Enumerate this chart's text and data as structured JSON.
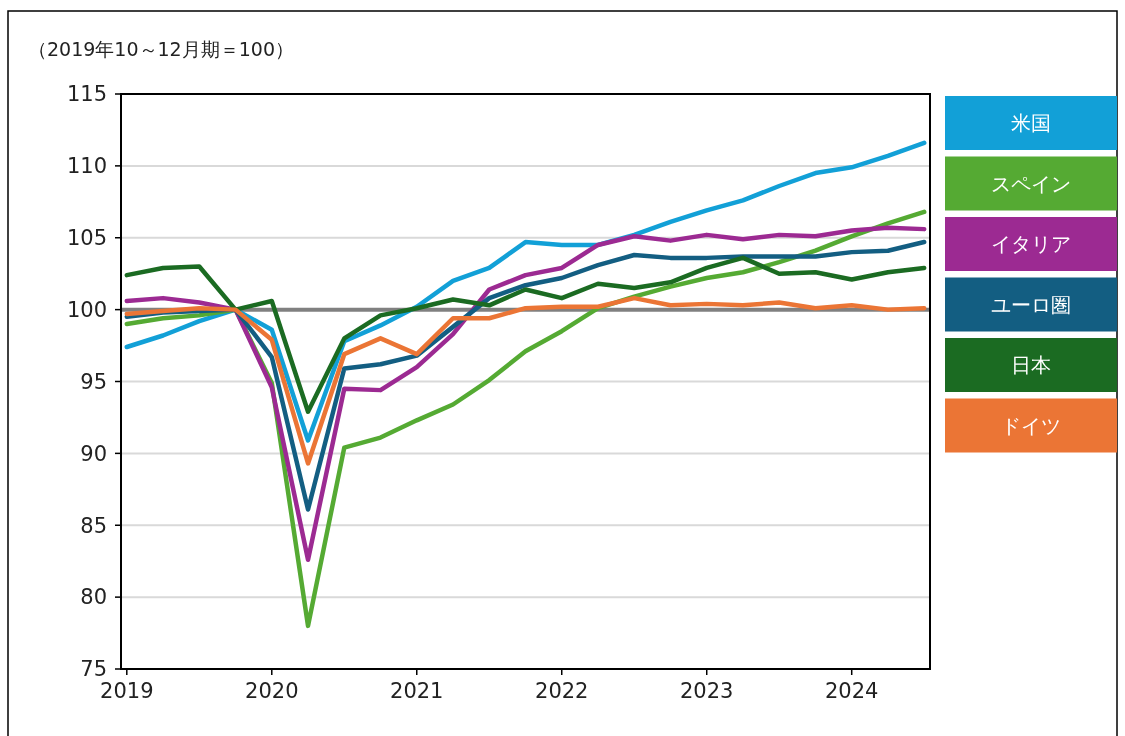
{
  "chart_data": {
    "type": "line",
    "ylabel": "（2019年10～12月期＝100）",
    "x": [
      2019,
      2019.25,
      2019.5,
      2019.75,
      2020,
      2020.25,
      2020.5,
      2020.75,
      2021,
      2021.25,
      2021.5,
      2021.75,
      2022,
      2022.25,
      2022.5,
      2022.75,
      2023,
      2023.25,
      2023.5,
      2023.75,
      2024,
      2024.25,
      2024.5
    ],
    "xlim": [
      2018.96,
      2024.54
    ],
    "xticks": [
      2019,
      2020,
      2021,
      2022,
      2023,
      2024
    ],
    "ylim": [
      75,
      115
    ],
    "yticks": [
      75,
      80,
      85,
      90,
      95,
      100,
      105,
      110,
      115
    ],
    "grid": "y",
    "legend": "right",
    "line_style": "solid",
    "marker": "none",
    "ref_lines": [
      {
        "axis": "y",
        "value": 100,
        "color": "#808080"
      }
    ],
    "series": [
      {
        "name": "米国",
        "color": "#12a0d7",
        "values": [
          97.4,
          98.2,
          99.2,
          100,
          98.6,
          90.9,
          97.8,
          98.9,
          100.2,
          102,
          102.9,
          104.7,
          104.5,
          104.5,
          105.2,
          106.1,
          106.9,
          107.6,
          108.6,
          109.5,
          109.9,
          110.7,
          111.6
        ]
      },
      {
        "name": "スペイン",
        "color": "#55aa33",
        "values": [
          99,
          99.4,
          99.6,
          100,
          94.9,
          78,
          90.4,
          91.1,
          92.3,
          93.4,
          95.1,
          97.1,
          98.5,
          100.1,
          100.9,
          101.6,
          102.2,
          102.6,
          103.3,
          104.1,
          105.1,
          106,
          106.8
        ]
      },
      {
        "name": "イタリア",
        "color": "#9c2a92",
        "values": [
          100.6,
          100.8,
          100.5,
          100,
          94.6,
          82.6,
          94.5,
          94.4,
          96,
          98.3,
          101.4,
          102.4,
          102.9,
          104.5,
          105.1,
          104.8,
          105.2,
          104.9,
          105.2,
          105.1,
          105.5,
          105.7,
          105.6
        ]
      },
      {
        "name": "ユーロ圏",
        "color": "#135e82",
        "values": [
          99.5,
          99.8,
          99.9,
          100,
          96.7,
          86.1,
          95.9,
          96.2,
          96.8,
          98.8,
          100.8,
          101.7,
          102.2,
          103.1,
          103.8,
          103.6,
          103.6,
          103.7,
          103.7,
          103.7,
          104,
          104.1,
          104.7
        ]
      },
      {
        "name": "日本",
        "color": "#1b6b22",
        "values": [
          102.4,
          102.9,
          103,
          100,
          100.6,
          92.9,
          98,
          99.6,
          100.1,
          100.7,
          100.3,
          101.4,
          100.8,
          101.8,
          101.5,
          101.9,
          102.9,
          103.6,
          102.5,
          102.6,
          102.1,
          102.6,
          102.9
        ]
      },
      {
        "name": "ドイツ",
        "color": "#eb7535",
        "values": [
          99.7,
          99.9,
          100.1,
          100,
          97.9,
          89.3,
          96.9,
          98,
          96.9,
          99.4,
          99.4,
          100.1,
          100.2,
          100.2,
          100.8,
          100.3,
          100.4,
          100.3,
          100.5,
          100.1,
          100.3,
          100,
          100.1
        ]
      }
    ]
  }
}
